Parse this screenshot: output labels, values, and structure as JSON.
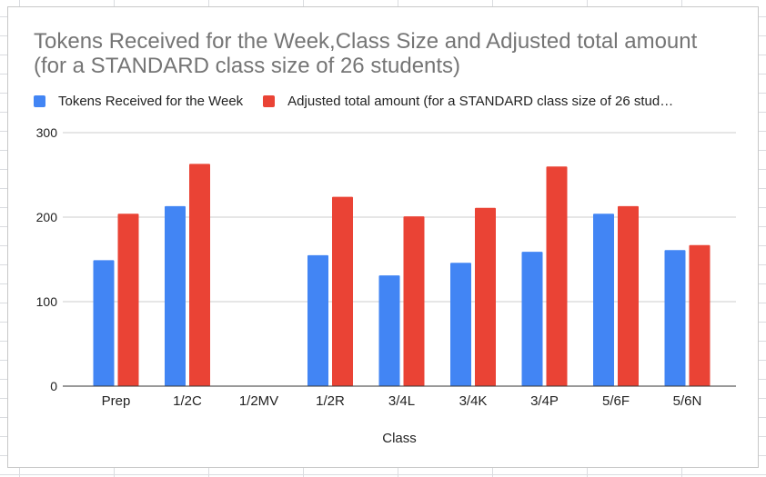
{
  "chart_data": {
    "type": "bar",
    "title": "Tokens Received for the Week,Class Size and Adjusted total amount (for a STANDARD class size of 26 students)",
    "xlabel": "Class",
    "ylabel": "",
    "categories": [
      "Prep",
      "1/2C",
      "1/2MV",
      "1/2R",
      "3/4L",
      "3/4K",
      "3/4P",
      "5/6F",
      "5/6N"
    ],
    "series": [
      {
        "name": "Tokens Received for the Week",
        "color": "#4285f4",
        "values": [
          149,
          213,
          null,
          155,
          131,
          146,
          159,
          204,
          161
        ]
      },
      {
        "name": "Adjusted total amount (for a STANDARD class size of 26 stud…",
        "color": "#ea4335",
        "values": [
          204,
          263,
          null,
          224,
          201,
          211,
          260,
          213,
          167
        ]
      }
    ],
    "yticks": [
      0,
      100,
      200,
      300
    ],
    "ylim": [
      0,
      300
    ],
    "grid": true,
    "legend_position": "top-left"
  }
}
